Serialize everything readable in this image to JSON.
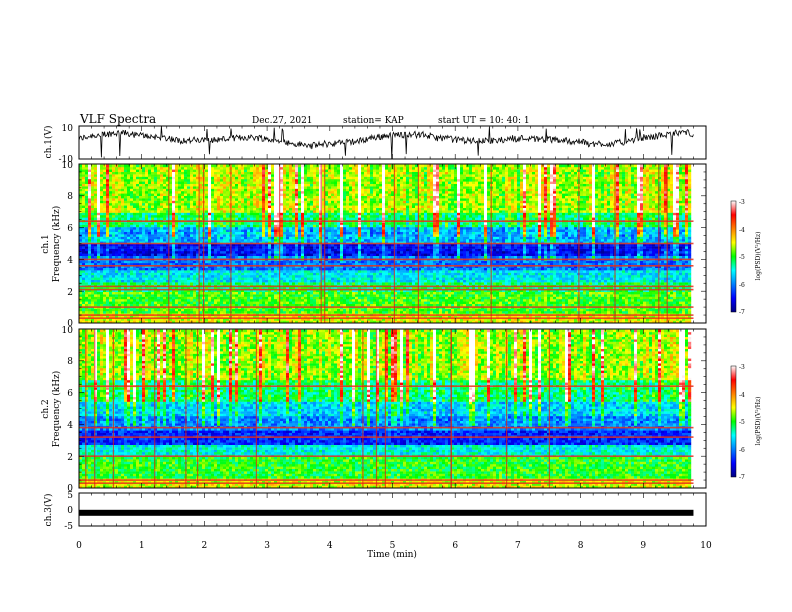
{
  "header": {
    "title": "VLF Spectra",
    "date": "Dec.27, 2021",
    "station": "station= KAP",
    "start": "start  UT =   10: 40: 1"
  },
  "chart_data": [
    {
      "type": "line",
      "name": "ch1-waveform",
      "ylabel": "ch.1(V)",
      "ylim": [
        -10,
        10
      ],
      "yticks": [
        "10",
        "-10"
      ],
      "xlim": [
        0,
        10
      ],
      "x_extent": 9.8,
      "baseline_v": 2,
      "color": "#000000"
    },
    {
      "type": "heatmap",
      "name": "ch1-spectrogram",
      "ylabel_1": "ch.1",
      "ylabel_2": "Frequency (kHz)",
      "ylim": [
        0,
        10
      ],
      "yticks": [
        "0",
        "2",
        "4",
        "6",
        "8",
        "10"
      ],
      "xlim": [
        0,
        10
      ],
      "x_extent": 9.8,
      "lines_khz": [
        0.3,
        0.5,
        1.0,
        2.1,
        2.3,
        3.6,
        4.0,
        5.0,
        6.4
      ],
      "colorbar": {
        "min": -7,
        "max": -3,
        "ticks": [
          "-3",
          "-4",
          "-5",
          "-6",
          "-7"
        ],
        "label": "log(PSD)(V²/Hz)"
      }
    },
    {
      "type": "heatmap",
      "name": "ch2-spectrogram",
      "ylabel_1": "ch.2",
      "ylabel_2": "Frequency (kHz)",
      "ylim": [
        0,
        10
      ],
      "yticks": [
        "0",
        "2",
        "4",
        "6",
        "8",
        "10"
      ],
      "xlim": [
        0,
        10
      ],
      "x_extent": 9.8,
      "lines_khz": [
        0.3,
        0.5,
        2.0,
        3.2,
        3.8,
        6.4
      ],
      "colorbar": {
        "min": -7,
        "max": -3,
        "ticks": [
          "-3",
          "-4",
          "-5",
          "-6",
          "-7"
        ],
        "label": "log(PSD)(V²/Hz)"
      }
    },
    {
      "type": "line",
      "name": "ch3-waveform",
      "ylabel": "ch.3(V)",
      "ylim": [
        -5,
        5
      ],
      "yticks": [
        "5",
        "0",
        "-5"
      ],
      "xlim": [
        0,
        10
      ],
      "x_extent": 9.8,
      "level_v": -1,
      "color": "#000000",
      "xlabel": "Time (min)",
      "xticks": [
        "0",
        "1",
        "2",
        "3",
        "4",
        "5",
        "6",
        "7",
        "8",
        "9",
        "10"
      ]
    }
  ]
}
